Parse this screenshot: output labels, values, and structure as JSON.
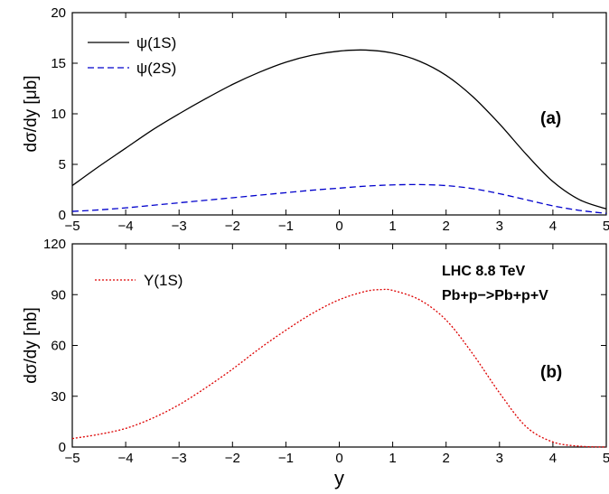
{
  "chart_data": [
    {
      "type": "line",
      "panel_label": "(a)",
      "ylabel": "dσ/dy [μb]",
      "xlabel": "",
      "xlim": [
        -5,
        5
      ],
      "ylim": [
        0,
        20
      ],
      "xticks": [
        -5,
        -4,
        -3,
        -2,
        -1,
        0,
        1,
        2,
        3,
        4,
        5
      ],
      "yticks": [
        0,
        5,
        10,
        15,
        20
      ],
      "legend": "top-left",
      "series": [
        {
          "name": "ψ(1S)",
          "color": "#000000",
          "dash": "solid",
          "x": [
            -5,
            -4.5,
            -4,
            -3.5,
            -3,
            -2.5,
            -2,
            -1.5,
            -1,
            -0.5,
            0,
            0.5,
            1,
            1.5,
            2,
            2.5,
            3,
            3.5,
            4,
            4.5,
            5
          ],
          "y": [
            2.9,
            4.8,
            6.6,
            8.4,
            10.0,
            11.5,
            12.9,
            14.1,
            15.1,
            15.8,
            16.2,
            16.3,
            16.0,
            15.2,
            13.8,
            11.7,
            9.0,
            6.0,
            3.3,
            1.5,
            0.6
          ]
        },
        {
          "name": "ψ(2S)",
          "color": "#0000cc",
          "dash": "dashed",
          "x": [
            -5,
            -4.5,
            -4,
            -3.5,
            -3,
            -2.5,
            -2,
            -1.5,
            -1,
            -0.5,
            0,
            0.5,
            1,
            1.5,
            2,
            2.5,
            3,
            3.5,
            4,
            4.5,
            5
          ],
          "y": [
            0.35,
            0.5,
            0.7,
            0.95,
            1.2,
            1.45,
            1.7,
            1.95,
            2.2,
            2.45,
            2.65,
            2.85,
            2.97,
            3.0,
            2.9,
            2.6,
            2.1,
            1.5,
            0.9,
            0.45,
            0.15
          ]
        }
      ]
    },
    {
      "type": "line",
      "panel_label": "(b)",
      "ylabel": "dσ/dy [nb]",
      "xlabel": "y",
      "xlim": [
        -5,
        5
      ],
      "ylim": [
        0,
        120
      ],
      "xticks": [
        -5,
        -4,
        -3,
        -2,
        -1,
        0,
        1,
        2,
        3,
        4,
        5
      ],
      "yticks": [
        0,
        30,
        60,
        90,
        120
      ],
      "legend": "top-left",
      "annotations": [
        "LHC 8.8 TeV",
        "Pb+p−>Pb+p+V"
      ],
      "series": [
        {
          "name": "Υ(1S)",
          "color": "#dd0000",
          "dash": "dotted",
          "x": [
            -5,
            -4.5,
            -4,
            -3.5,
            -3,
            -2.5,
            -2,
            -1.5,
            -1,
            -0.5,
            0,
            0.5,
            0.8,
            1,
            1.5,
            2,
            2.5,
            3,
            3.5,
            4,
            4.5,
            5
          ],
          "y": [
            5,
            7.5,
            11,
            17,
            25,
            35,
            46,
            58,
            69,
            79,
            87,
            92,
            93,
            92.5,
            87,
            75,
            55,
            32,
            12,
            3,
            0.5,
            0
          ]
        }
      ]
    }
  ]
}
